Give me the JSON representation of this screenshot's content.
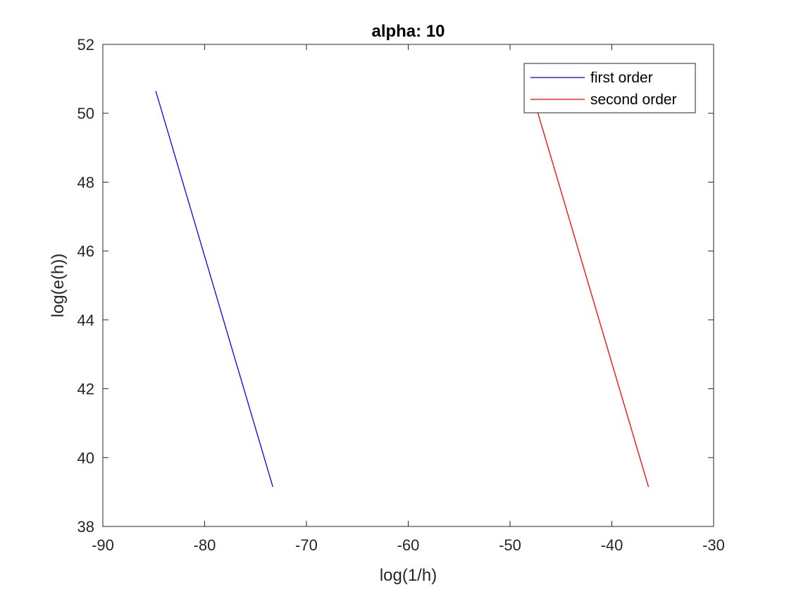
{
  "chart_data": {
    "type": "line",
    "title": "alpha: 10",
    "xlabel": "log(1/h)",
    "ylabel": "log(e(h))",
    "xlim": [
      -90,
      -30
    ],
    "ylim": [
      38,
      52
    ],
    "xticks": [
      -90,
      -80,
      -70,
      -60,
      -50,
      -40,
      -30
    ],
    "yticks": [
      38,
      40,
      42,
      44,
      46,
      48,
      50,
      52
    ],
    "grid": false,
    "legend_position": "top-right",
    "series": [
      {
        "name": "first order",
        "color": "#0000ff",
        "x": [
          -84.8,
          -73.3
        ],
        "y": [
          50.65,
          39.15
        ]
      },
      {
        "name": "second order",
        "color": "#ff0000",
        "x": [
          -47.9,
          -36.4
        ],
        "y": [
          50.65,
          39.15
        ]
      }
    ]
  }
}
